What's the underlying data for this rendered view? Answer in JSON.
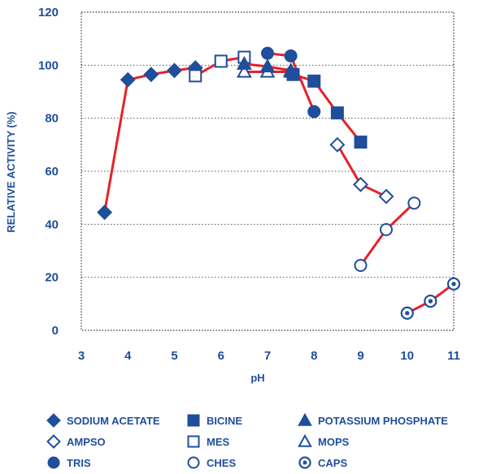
{
  "chart_data": {
    "type": "line",
    "xlabel": "pH",
    "ylabel": "RELATIVE ACTIVITY (%)",
    "xlim": [
      3,
      11
    ],
    "ylim": [
      0,
      120
    ],
    "xticks": [
      "3",
      "4",
      "5",
      "6",
      "7",
      "8",
      "9",
      "10",
      "11"
    ],
    "yticks": [
      "0",
      "20",
      "40",
      "60",
      "80",
      "100",
      "120"
    ],
    "grid": "dotted horizontal",
    "line_color": "#e8202a",
    "marker_color": "#1f4e9a",
    "series": [
      {
        "name": "SODIUM ACETATE",
        "marker": "diamond-filled",
        "points": [
          [
            3.5,
            44.5
          ],
          [
            4.0,
            94.5
          ],
          [
            4.5,
            96.5
          ],
          [
            5.0,
            98.0
          ],
          [
            5.45,
            99.0
          ]
        ]
      },
      {
        "name": "MES",
        "marker": "square-open",
        "points": [
          [
            5.45,
            96.0
          ],
          [
            6.0,
            101.5
          ],
          [
            6.5,
            103.0
          ]
        ]
      },
      {
        "name": "MOPS",
        "marker": "triangle-open",
        "points": [
          [
            6.5,
            97.5
          ],
          [
            7.0,
            97.5
          ],
          [
            7.5,
            97.5
          ]
        ]
      },
      {
        "name": "POTASSIUM PHOSPHATE",
        "marker": "triangle-filled",
        "points": [
          [
            6.5,
            100.5
          ],
          [
            7.0,
            99.5
          ],
          [
            7.5,
            98.0
          ]
        ]
      },
      {
        "name": "TRIS",
        "marker": "circle-filled",
        "points": [
          [
            7.0,
            104.5
          ],
          [
            7.5,
            103.5
          ],
          [
            8.0,
            82.5
          ]
        ]
      },
      {
        "name": "BICINE",
        "marker": "square-filled",
        "points": [
          [
            7.55,
            96.5
          ],
          [
            8.0,
            94.0
          ],
          [
            8.5,
            82.0
          ],
          [
            9.0,
            71.0
          ]
        ]
      },
      {
        "name": "AMPSO",
        "marker": "diamond-open",
        "points": [
          [
            8.5,
            70.0
          ],
          [
            9.0,
            55.0
          ],
          [
            9.55,
            50.5
          ]
        ]
      },
      {
        "name": "CHES",
        "marker": "circle-open",
        "points": [
          [
            9.0,
            24.5
          ],
          [
            9.55,
            38.0
          ],
          [
            10.15,
            48.0
          ]
        ]
      },
      {
        "name": "CAPS",
        "marker": "circle-dot",
        "points": [
          [
            10.0,
            6.5
          ],
          [
            10.5,
            11.0
          ],
          [
            11.0,
            17.5
          ]
        ]
      }
    ],
    "legend": {
      "placement": "bottom",
      "rows": [
        [
          "SODIUM ACETATE",
          "BICINE",
          "POTASSIUM PHOSPHATE"
        ],
        [
          "AMPSO",
          "MES",
          "MOPS"
        ],
        [
          "TRIS",
          "CHES",
          "CAPS"
        ]
      ]
    }
  }
}
